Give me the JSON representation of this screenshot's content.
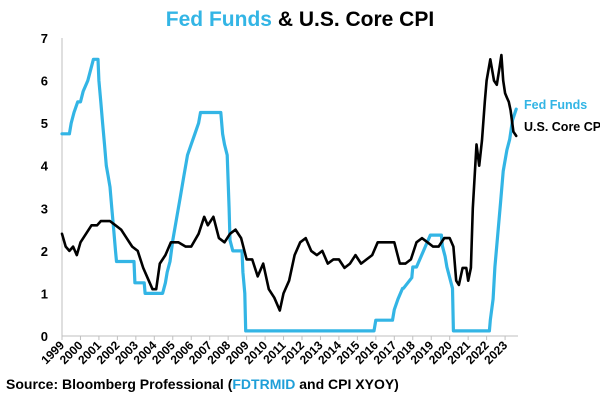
{
  "title": {
    "part1": "Fed Funds",
    "part2": "& U.S. Core CPI"
  },
  "source": {
    "prefix": "Source: Bloomberg Professional (",
    "ticker1": "FDTRMID",
    "middle": " and CPI XYOY)"
  },
  "chart_data": {
    "type": "line",
    "title": "Fed Funds & U.S. Core CPI",
    "xlabel": "",
    "ylabel": "",
    "xlim": [
      1999,
      2023.7
    ],
    "ylim": [
      0,
      7
    ],
    "yticks": [
      0,
      1,
      2,
      3,
      4,
      5,
      6,
      7
    ],
    "xticks": [
      1999,
      2000,
      2001,
      2002,
      2003,
      2004,
      2005,
      2006,
      2007,
      2008,
      2009,
      2010,
      2011,
      2012,
      2013,
      2014,
      2015,
      2016,
      2017,
      2018,
      2019,
      2020,
      2021,
      2022,
      2023
    ],
    "grid": false,
    "legend_placement": "right, inline end labels",
    "series": [
      {
        "name": "Fed Funds",
        "color": "#33b5e5",
        "x": [
          1999.0,
          1999.4,
          1999.5,
          1999.65,
          1999.85,
          2000.0,
          2000.15,
          2000.4,
          2000.7,
          2000.95,
          2001.0,
          2001.1,
          2001.2,
          2001.3,
          2001.4,
          2001.5,
          2001.6,
          2001.7,
          2001.8,
          2001.9,
          2001.95,
          2002.9,
          2002.95,
          2003.45,
          2003.5,
          2004.45,
          2004.6,
          2004.7,
          2004.85,
          2005.0,
          2005.2,
          2005.4,
          2005.6,
          2005.8,
          2006.0,
          2006.2,
          2006.4,
          2006.5,
          2007.6,
          2007.7,
          2007.8,
          2007.95,
          2008.05,
          2008.1,
          2008.25,
          2008.3,
          2008.75,
          2008.8,
          2008.9,
          2008.95,
          2015.9,
          2016.0,
          2016.9,
          2017.0,
          2017.2,
          2017.45,
          2017.5,
          2017.95,
          2018.0,
          2018.2,
          2018.45,
          2018.7,
          2018.95,
          2019.55,
          2019.6,
          2019.75,
          2019.85,
          2020.15,
          2020.2,
          2022.15,
          2022.2,
          2022.35,
          2022.45,
          2022.6,
          2022.75,
          2022.9,
          2023.1,
          2023.25,
          2023.4,
          2023.6
        ],
        "y": [
          4.75,
          4.75,
          5.0,
          5.25,
          5.5,
          5.5,
          5.75,
          6.0,
          6.5,
          6.5,
          6.0,
          5.5,
          5.0,
          4.5,
          4.0,
          3.75,
          3.5,
          3.0,
          2.5,
          2.0,
          1.75,
          1.75,
          1.25,
          1.25,
          1.0,
          1.0,
          1.25,
          1.5,
          1.75,
          2.25,
          2.75,
          3.25,
          3.75,
          4.25,
          4.5,
          4.75,
          5.0,
          5.25,
          5.25,
          4.75,
          4.5,
          4.25,
          3.0,
          2.25,
          2.0,
          2.0,
          2.0,
          1.5,
          1.0,
          0.12,
          0.12,
          0.37,
          0.37,
          0.62,
          0.87,
          1.12,
          1.12,
          1.37,
          1.62,
          1.62,
          1.87,
          2.12,
          2.37,
          2.37,
          2.12,
          1.87,
          1.62,
          1.12,
          0.12,
          0.12,
          0.37,
          0.87,
          1.62,
          2.37,
          3.12,
          3.87,
          4.37,
          4.62,
          5.07,
          5.33
        ]
      },
      {
        "name": "U.S. Core CPI",
        "color": "#000000",
        "x": [
          1999.0,
          1999.2,
          1999.4,
          1999.6,
          1999.8,
          2000.0,
          2000.3,
          2000.6,
          2000.9,
          2001.1,
          2001.3,
          2001.6,
          2001.9,
          2002.2,
          2002.5,
          2002.8,
          2003.1,
          2003.4,
          2003.7,
          2003.9,
          2004.1,
          2004.3,
          2004.6,
          2004.9,
          2005.3,
          2005.7,
          2006.0,
          2006.4,
          2006.7,
          2006.9,
          2007.2,
          2007.5,
          2007.8,
          2008.1,
          2008.4,
          2008.7,
          2009.0,
          2009.3,
          2009.6,
          2009.9,
          2010.2,
          2010.5,
          2010.8,
          2011.0,
          2011.3,
          2011.6,
          2011.9,
          2012.2,
          2012.5,
          2012.8,
          2013.1,
          2013.4,
          2013.7,
          2014.0,
          2014.3,
          2014.6,
          2014.9,
          2015.2,
          2015.5,
          2015.8,
          2016.1,
          2016.4,
          2016.7,
          2017.0,
          2017.3,
          2017.6,
          2017.9,
          2018.2,
          2018.5,
          2018.8,
          2019.1,
          2019.4,
          2019.7,
          2020.0,
          2020.2,
          2020.35,
          2020.5,
          2020.7,
          2020.9,
          2021.0,
          2021.15,
          2021.25,
          2021.45,
          2021.6,
          2021.75,
          2021.9,
          2022.0,
          2022.2,
          2022.4,
          2022.55,
          2022.7,
          2022.8,
          2022.9,
          2023.0,
          2023.1,
          2023.2,
          2023.3,
          2023.45,
          2023.6
        ],
        "y": [
          2.4,
          2.1,
          2.0,
          2.1,
          1.9,
          2.2,
          2.4,
          2.6,
          2.6,
          2.7,
          2.7,
          2.7,
          2.6,
          2.5,
          2.3,
          2.1,
          2.0,
          1.6,
          1.3,
          1.1,
          1.1,
          1.7,
          1.9,
          2.2,
          2.2,
          2.1,
          2.1,
          2.4,
          2.8,
          2.6,
          2.8,
          2.3,
          2.2,
          2.4,
          2.5,
          2.3,
          1.8,
          1.8,
          1.4,
          1.7,
          1.1,
          0.9,
          0.6,
          1.0,
          1.3,
          1.9,
          2.2,
          2.3,
          2.0,
          1.9,
          2.0,
          1.7,
          1.8,
          1.8,
          1.6,
          1.7,
          1.9,
          1.7,
          1.8,
          1.9,
          2.2,
          2.2,
          2.2,
          2.2,
          1.7,
          1.7,
          1.8,
          2.2,
          2.3,
          2.2,
          2.1,
          2.1,
          2.3,
          2.3,
          2.1,
          1.3,
          1.2,
          1.6,
          1.6,
          1.3,
          1.6,
          3.0,
          4.5,
          4.0,
          4.6,
          5.5,
          6.0,
          6.5,
          6.0,
          5.9,
          6.3,
          6.6,
          6.0,
          5.7,
          5.6,
          5.5,
          5.3,
          4.8,
          4.7
        ]
      }
    ]
  }
}
